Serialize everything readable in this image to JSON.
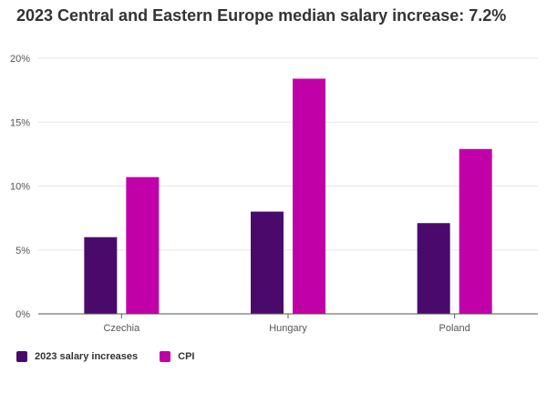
{
  "chart_data": {
    "type": "bar",
    "title": "2023 Central and Eastern Europe median salary increase: 7.2%",
    "xlabel": "",
    "ylabel": "",
    "ylim": [
      0,
      20
    ],
    "yticks": [
      0,
      5,
      10,
      15,
      20
    ],
    "ytick_labels": [
      "0%",
      "5%",
      "10%",
      "15%",
      "20%"
    ],
    "categories": [
      "Czechia",
      "Hungary",
      "Poland"
    ],
    "series": [
      {
        "name": "2023 salary increases",
        "color": "#4a0a6b",
        "values": [
          6.0,
          8.0,
          7.1
        ]
      },
      {
        "name": "CPI",
        "color": "#c200a8",
        "values": [
          10.7,
          18.4,
          12.9
        ]
      }
    ],
    "legend_position": "bottom-left",
    "grid": true
  }
}
